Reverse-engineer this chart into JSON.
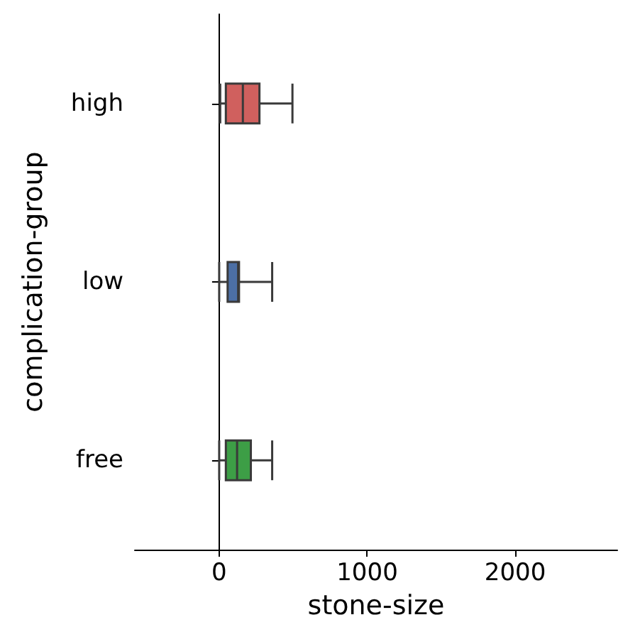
{
  "chart_data": {
    "type": "box",
    "orientation": "horizontal",
    "xlabel": "stone-size",
    "ylabel": "complication-group",
    "categories": [
      "high",
      "low",
      "free"
    ],
    "colors": [
      "#d0605e",
      "#4c6fa5",
      "#3d9e46"
    ],
    "boxes": [
      {
        "low": 7,
        "q1": 45,
        "median": 160,
        "q3": 272,
        "high": 495
      },
      {
        "low": 0,
        "q1": 57,
        "median": 128,
        "q3": 134,
        "high": 358
      },
      {
        "low": 0,
        "q1": 45,
        "median": 121,
        "q3": 214,
        "high": 358
      }
    ],
    "xlim": [
      -570,
      2690
    ],
    "xticks": [
      0,
      1000,
      2000
    ]
  }
}
